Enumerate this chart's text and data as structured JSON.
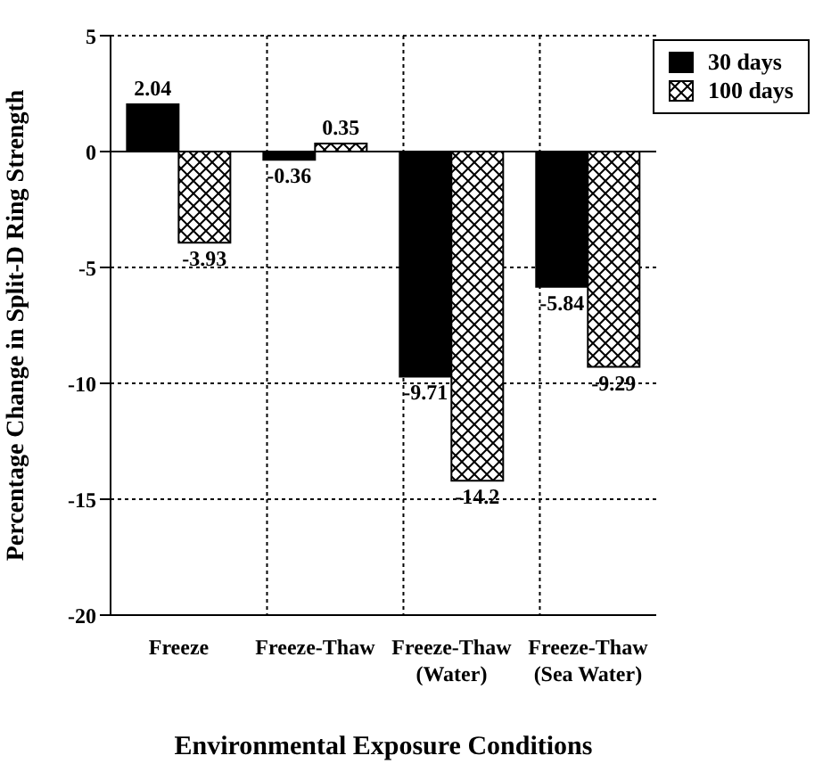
{
  "chart_data": {
    "type": "bar",
    "xlabel": "Environmental Exposure Conditions",
    "ylabel": "Percentage Change in Split-D Ring Strength",
    "categories": [
      "Freeze",
      "Freeze-Thaw",
      "Freeze-Thaw (Water)",
      "Freeze-Thaw (Sea Water)"
    ],
    "series": [
      {
        "name": "30 days",
        "color": "#000000",
        "values": [
          2.04,
          -0.36,
          -9.71,
          -5.84
        ]
      },
      {
        "name": "100 days",
        "color": "#000000",
        "values": [
          -3.93,
          0.35,
          -14.2,
          -9.29
        ]
      }
    ],
    "ylim": [
      -20,
      5
    ],
    "yticks": [
      -20,
      -15,
      -10,
      -5,
      0,
      5
    ],
    "grid": true,
    "legend": "top right",
    "data_labels": true
  }
}
